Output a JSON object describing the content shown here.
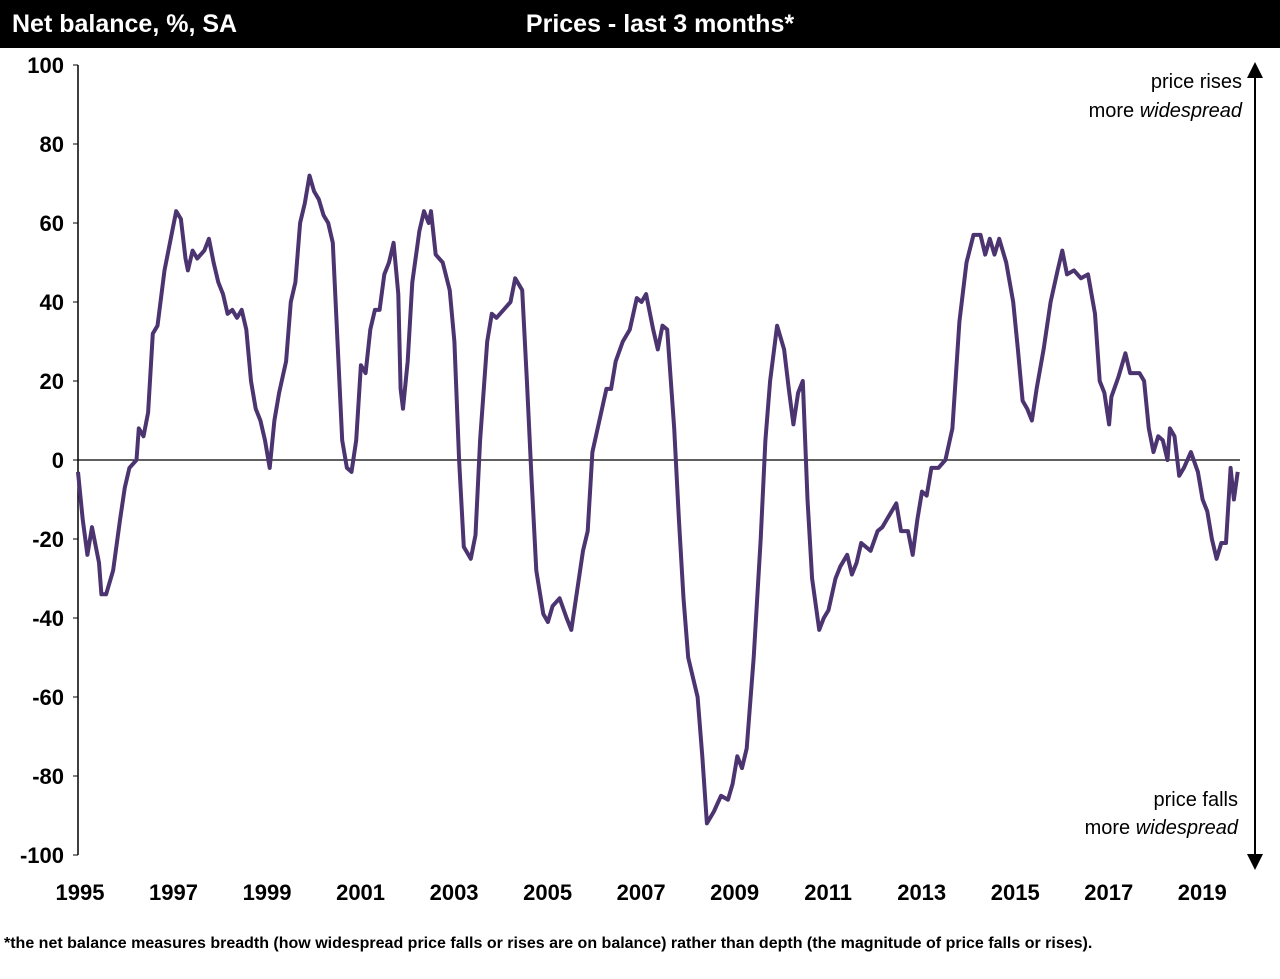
{
  "chart_data": {
    "type": "line",
    "title": "Prices - last 3 months*",
    "y_label": "Net balance, %, SA",
    "annotation_top": {
      "line1": "price rises",
      "prefix": "more",
      "italic": "widespread"
    },
    "annotation_bottom": {
      "line1": "price falls",
      "prefix": "more",
      "italic": "widespread"
    },
    "footnote": "*the net balance measures breadth (how widespread price falls or rises are on balance)  rather than depth (the magnitude of price falls or rises).",
    "xlim": [
      1995,
      2019.85
    ],
    "xticks": [
      1995,
      1997,
      1999,
      2001,
      2003,
      2005,
      2007,
      2009,
      2011,
      2013,
      2015,
      2017,
      2019
    ],
    "ylim": [
      -100,
      100
    ],
    "yticks": [
      -100,
      -80,
      -60,
      -40,
      -20,
      0,
      20,
      40,
      60,
      80,
      100
    ],
    "zero_line": true,
    "series": [
      {
        "name": "Prices",
        "color": "#4b3470",
        "x": [
          1995.0,
          1995.1,
          1995.2,
          1995.3,
          1995.45,
          1995.5,
          1995.6,
          1995.75,
          1995.9,
          1996.0,
          1996.1,
          1996.25,
          1996.3,
          1996.4,
          1996.5,
          1996.6,
          1996.7,
          1996.85,
          1997.0,
          1997.1,
          1997.2,
          1997.3,
          1997.35,
          1997.45,
          1997.55,
          1997.7,
          1997.8,
          1997.9,
          1998.0,
          1998.1,
          1998.2,
          1998.3,
          1998.4,
          1998.5,
          1998.6,
          1998.7,
          1998.8,
          1998.9,
          1999.0,
          1999.1,
          1999.2,
          1999.3,
          1999.45,
          1999.55,
          1999.65,
          1999.75,
          1999.85,
          1999.95,
          2000.05,
          2000.15,
          2000.25,
          2000.35,
          2000.45,
          2000.55,
          2000.65,
          2000.75,
          2000.85,
          2000.95,
          2001.05,
          2001.15,
          2001.25,
          2001.35,
          2001.45,
          2001.55,
          2001.65,
          2001.75,
          2001.85,
          2001.9,
          2001.95,
          2002.05,
          2002.15,
          2002.3,
          2002.4,
          2002.5,
          2002.55,
          2002.65,
          2002.8,
          2002.95,
          2003.05,
          2003.15,
          2003.25,
          2003.4,
          2003.5,
          2003.6,
          2003.75,
          2003.85,
          2003.95,
          2004.1,
          2004.25,
          2004.35,
          2004.5,
          2004.6,
          2004.7,
          2004.8,
          2004.95,
          2005.05,
          2005.15,
          2005.3,
          2005.45,
          2005.55,
          2005.65,
          2005.8,
          2005.9,
          2006.0,
          2006.15,
          2006.3,
          2006.4,
          2006.5,
          2006.65,
          2006.8,
          2006.95,
          2007.05,
          2007.15,
          2007.3,
          2007.4,
          2007.5,
          2007.6,
          2007.75,
          2007.85,
          2007.95,
          2008.05,
          2008.15,
          2008.25,
          2008.35,
          2008.45,
          2008.6,
          2008.75,
          2008.9,
          2009.0,
          2009.1,
          2009.2,
          2009.3,
          2009.45,
          2009.6,
          2009.7,
          2009.8,
          2009.95,
          2010.1,
          2010.2,
          2010.3,
          2010.4,
          2010.5,
          2010.6,
          2010.7,
          2010.85,
          2010.95,
          2011.05,
          2011.2,
          2011.3,
          2011.45,
          2011.55,
          2011.65,
          2011.75,
          2011.95,
          2012.1,
          2012.2,
          2012.35,
          2012.5,
          2012.6,
          2012.75,
          2012.85,
          2012.95,
          2013.05,
          2013.15,
          2013.25,
          2013.4,
          2013.55,
          2013.7,
          2013.85,
          2014.0,
          2014.15,
          2014.3,
          2014.4,
          2014.5,
          2014.6,
          2014.7,
          2014.85,
          2015.0,
          2015.1,
          2015.2,
          2015.3,
          2015.4,
          2015.5,
          2015.65,
          2015.8,
          2015.95,
          2016.05,
          2016.15,
          2016.3,
          2016.45,
          2016.6,
          2016.75,
          2016.85,
          2016.95,
          2017.05,
          2017.1,
          2017.25,
          2017.4,
          2017.5,
          2017.6,
          2017.7,
          2017.8,
          2017.9,
          2018.0,
          2018.1,
          2018.2,
          2018.3,
          2018.35,
          2018.45,
          2018.55,
          2018.65,
          2018.8,
          2018.95,
          2019.05,
          2019.15,
          2019.25,
          2019.35,
          2019.45,
          2019.55,
          2019.65,
          2019.72,
          2019.8
        ],
        "values": [
          -3,
          -15,
          -24,
          -17,
          -26,
          -34,
          -34,
          -28,
          -15,
          -7,
          -2,
          0,
          8,
          6,
          12,
          32,
          34,
          48,
          57,
          63,
          61,
          51,
          48,
          53,
          51,
          53,
          56,
          50,
          45,
          42,
          37,
          38,
          36,
          38,
          33,
          20,
          13,
          10,
          5,
          -2,
          10,
          17,
          25,
          40,
          45,
          60,
          65,
          72,
          68,
          66,
          62,
          60,
          55,
          30,
          5,
          -2,
          -3,
          5,
          24,
          22,
          33,
          38,
          38,
          47,
          50,
          55,
          42,
          18,
          13,
          25,
          45,
          58,
          63,
          60,
          63,
          52,
          50,
          43,
          30,
          0,
          -22,
          -25,
          -19,
          5,
          30,
          37,
          36,
          38,
          40,
          46,
          43,
          20,
          -5,
          -28,
          -39,
          -41,
          -37,
          -35,
          -40,
          -43,
          -35,
          -23,
          -18,
          2,
          10,
          18,
          18,
          25,
          30,
          33,
          41,
          40,
          42,
          33,
          28,
          34,
          33,
          8,
          -15,
          -35,
          -50,
          -55,
          -60,
          -75,
          -92,
          -89,
          -85,
          -86,
          -82,
          -75,
          -78,
          -73,
          -50,
          -20,
          5,
          20,
          34,
          28,
          18,
          9,
          17,
          20,
          -10,
          -30,
          -43,
          -40,
          -38,
          -30,
          -27,
          -24,
          -29,
          -26,
          -21,
          -23,
          -18,
          -17,
          -14,
          -11,
          -18,
          -18,
          -24,
          -15,
          -8,
          -9,
          -2,
          -2,
          0,
          8,
          35,
          50,
          57,
          57,
          52,
          56,
          52,
          56,
          50,
          40,
          28,
          15,
          13,
          10,
          18,
          28,
          40,
          48,
          53,
          47,
          48,
          46,
          47,
          37,
          20,
          17,
          9,
          16,
          21,
          27,
          22,
          22,
          22,
          20,
          8,
          2,
          6,
          5,
          0,
          8,
          6,
          -4,
          -2,
          2,
          -3,
          -10,
          -13,
          -20,
          -25,
          -21,
          -21,
          -2,
          -10,
          -3
        ]
      }
    ]
  }
}
